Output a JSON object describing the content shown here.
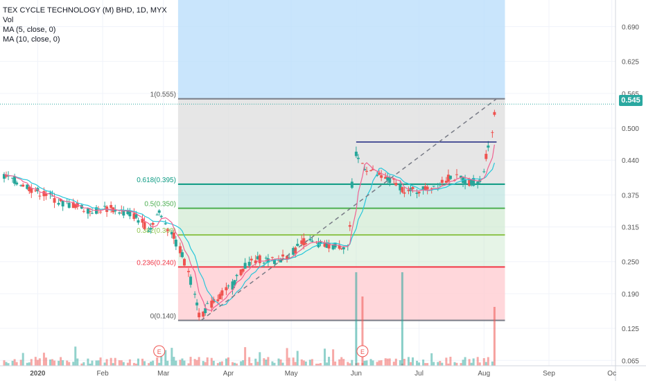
{
  "header": {
    "title": "TEX CYCLE TECHNOLOGY (M) BHD, 1D, MYX",
    "indicators": [
      "Vol",
      "MA (5, close, 0)",
      "MA (10, close, 0)"
    ]
  },
  "last_price_label": "0.545",
  "earnings_marker": "E",
  "colors": {
    "up": "#26a69a",
    "down": "#ef5350",
    "ma5": "#f06292",
    "ma10": "#26c6da",
    "zone_top": "#bbdefb",
    "zone_grey": "#e0e0e0",
    "zone_teal": "#b2dfdb",
    "zone_green": "#c8e6c9",
    "zone_red": "#ffcdd2",
    "line_0618": "#089981",
    "line_05": "#4caf50",
    "line_0382": "#8bc34a",
    "line_0236": "#f23645",
    "line_grey": "#787b86",
    "resistance": "#1a237e"
  },
  "chart_data": {
    "type": "candlestick",
    "title": "TEX CYCLE TECHNOLOGY (M) BHD, 1D, MYX",
    "x_ticks": [
      "2020",
      "Feb",
      "Mar",
      "Apr",
      "May",
      "Jun",
      "Jul",
      "Aug",
      "Sep",
      "Oc"
    ],
    "y_ticks": [
      "0.065",
      "0.125",
      "0.190",
      "0.250",
      "0.315",
      "0.375",
      "0.440",
      "0.500",
      "0.565",
      "0.625",
      "0.690"
    ],
    "ylim": [
      0.055,
      0.74
    ],
    "last_price": 0.545,
    "fib_levels": [
      {
        "label": "1(0.555)",
        "value": 0.555
      },
      {
        "label": "0.618(0.395)",
        "value": 0.395
      },
      {
        "label": "0.5(0.350)",
        "value": 0.35
      },
      {
        "label": "0.382(0.300)",
        "value": 0.3
      },
      {
        "label": "0.236(0.240)",
        "value": 0.24
      },
      {
        "label": "0(0.140)",
        "value": 0.14
      }
    ],
    "resistance_level": 0.474,
    "trend_line": {
      "from": {
        "date": "2020-03-19",
        "value": 0.14
      },
      "to": {
        "date": "2020-08-07",
        "value": 0.555
      }
    },
    "earnings_dates": [
      "2020-02-28",
      "2020-06-04"
    ],
    "price_points": [
      {
        "date": "2019-12-16",
        "value": 0.41
      },
      {
        "date": "2019-12-23",
        "value": 0.4
      },
      {
        "date": "2019-12-30",
        "value": 0.385
      },
      {
        "date": "2020-01-06",
        "value": 0.375
      },
      {
        "date": "2020-01-13",
        "value": 0.36
      },
      {
        "date": "2020-01-20",
        "value": 0.355
      },
      {
        "date": "2020-01-27",
        "value": 0.345
      },
      {
        "date": "2020-02-03",
        "value": 0.35
      },
      {
        "date": "2020-02-10",
        "value": 0.345
      },
      {
        "date": "2020-02-17",
        "value": 0.335
      },
      {
        "date": "2020-02-24",
        "value": 0.31
      },
      {
        "date": "2020-02-28",
        "value": 0.345
      },
      {
        "date": "2020-03-06",
        "value": 0.3
      },
      {
        "date": "2020-03-13",
        "value": 0.24
      },
      {
        "date": "2020-03-19",
        "value": 0.15
      },
      {
        "date": "2020-03-27",
        "value": 0.18
      },
      {
        "date": "2020-04-03",
        "value": 0.205
      },
      {
        "date": "2020-04-10",
        "value": 0.245
      },
      {
        "date": "2020-04-17",
        "value": 0.255
      },
      {
        "date": "2020-04-24",
        "value": 0.25
      },
      {
        "date": "2020-05-01",
        "value": 0.265
      },
      {
        "date": "2020-05-08",
        "value": 0.29
      },
      {
        "date": "2020-05-15",
        "value": 0.28
      },
      {
        "date": "2020-05-22",
        "value": 0.28
      },
      {
        "date": "2020-05-29",
        "value": 0.28
      },
      {
        "date": "2020-06-01",
        "value": 0.45
      },
      {
        "date": "2020-06-05",
        "value": 0.43
      },
      {
        "date": "2020-06-12",
        "value": 0.41
      },
      {
        "date": "2020-06-19",
        "value": 0.4
      },
      {
        "date": "2020-06-26",
        "value": 0.38
      },
      {
        "date": "2020-07-03",
        "value": 0.385
      },
      {
        "date": "2020-07-10",
        "value": 0.395
      },
      {
        "date": "2020-07-17",
        "value": 0.41
      },
      {
        "date": "2020-07-24",
        "value": 0.4
      },
      {
        "date": "2020-07-31",
        "value": 0.4
      },
      {
        "date": "2020-08-03",
        "value": 0.46
      },
      {
        "date": "2020-08-06",
        "value": 0.5
      },
      {
        "date": "2020-08-07",
        "value": 0.545
      }
    ],
    "volume_spikes": [
      {
        "date": "2020-06-01",
        "value": "high"
      },
      {
        "date": "2020-06-04",
        "value": "high"
      },
      {
        "date": "2020-06-23",
        "value": "high"
      },
      {
        "date": "2020-08-06",
        "value": "high"
      }
    ]
  }
}
